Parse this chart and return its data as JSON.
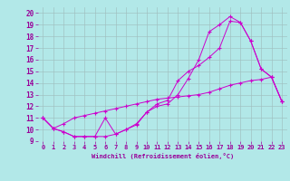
{
  "xlabel": "Windchill (Refroidissement éolien,°C)",
  "background_color": "#b2e8e8",
  "grid_color": "#9fbfbf",
  "line_color": "#cc00cc",
  "xlim": [
    -0.5,
    23.5
  ],
  "ylim": [
    9,
    20.5
  ],
  "xticks": [
    0,
    1,
    2,
    3,
    4,
    5,
    6,
    7,
    8,
    9,
    10,
    11,
    12,
    13,
    14,
    15,
    16,
    17,
    18,
    19,
    20,
    21,
    22,
    23
  ],
  "yticks": [
    9,
    10,
    11,
    12,
    13,
    14,
    15,
    16,
    17,
    18,
    19,
    20
  ],
  "line1_x": [
    0,
    1,
    2,
    3,
    4,
    5,
    6,
    7,
    8,
    9,
    10,
    11,
    12,
    13,
    14,
    15,
    16,
    17,
    18,
    19,
    20,
    21,
    22,
    23
  ],
  "line1_y": [
    11.0,
    10.1,
    9.8,
    9.4,
    9.4,
    9.4,
    11.0,
    9.6,
    10.0,
    10.4,
    11.5,
    12.2,
    12.5,
    14.2,
    15.0,
    15.5,
    16.2,
    17.0,
    19.3,
    19.2,
    17.6,
    15.2,
    14.5,
    12.4
  ],
  "line2_x": [
    0,
    1,
    2,
    3,
    4,
    5,
    6,
    7,
    8,
    9,
    10,
    11,
    12,
    13,
    14,
    15,
    16,
    17,
    18,
    19,
    20,
    21,
    22,
    23
  ],
  "line2_y": [
    11.0,
    10.1,
    9.8,
    9.4,
    9.4,
    9.4,
    9.4,
    9.6,
    10.0,
    10.5,
    11.5,
    12.0,
    12.2,
    13.0,
    14.4,
    16.0,
    18.4,
    19.0,
    19.7,
    19.2,
    17.6,
    15.2,
    14.5,
    12.4
  ],
  "line3_x": [
    0,
    1,
    2,
    3,
    4,
    5,
    6,
    7,
    8,
    9,
    10,
    11,
    12,
    13,
    14,
    15,
    16,
    17,
    18,
    19,
    20,
    21,
    22,
    23
  ],
  "line3_y": [
    11.0,
    10.1,
    10.5,
    11.0,
    11.2,
    11.4,
    11.6,
    11.8,
    12.0,
    12.2,
    12.4,
    12.6,
    12.7,
    12.8,
    12.9,
    13.0,
    13.2,
    13.5,
    13.8,
    14.0,
    14.2,
    14.3,
    14.5,
    12.4
  ],
  "tick_fontsize": 5,
  "xlabel_fontsize": 5,
  "label_color": "#990099"
}
